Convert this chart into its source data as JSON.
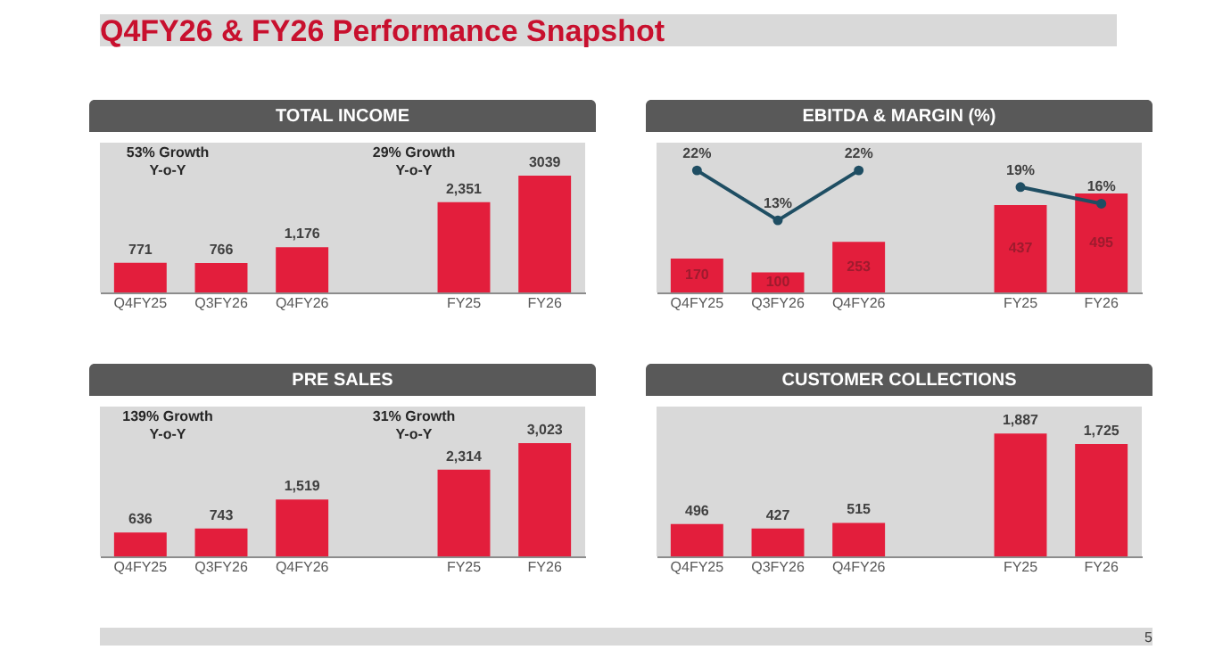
{
  "chart_data": [
    {
      "type": "other",
      "title": "Q4FY26 & FY26 Performance Snapshot",
      "annotations": [
        "5"
      ]
    },
    {
      "type": "bar",
      "title": "TOTAL INCOME",
      "categories": [
        "Q4FY25",
        "Q3FY26",
        "Q4FY26",
        null,
        "FY25",
        "FY26"
      ],
      "values": [
        771,
        766,
        1176,
        null,
        2351,
        3039
      ],
      "value_labels": [
        "771",
        "766",
        "1,176",
        null,
        "2,351",
        "3039"
      ],
      "color": "#e31e3c",
      "ylim": [
        0,
        3900
      ],
      "tick_labels": "x",
      "annotations": [
        "53% Growth\nY-o-Y",
        "29% Growth\nY-o-Y"
      ]
    },
    {
      "type": "bar",
      "title": "EBITDA & MARGIN (%)",
      "categories": [
        "Q4FY25",
        "Q3FY26",
        "Q4FY26",
        null,
        "FY25",
        "FY26"
      ],
      "ylim": [
        0,
        750
      ],
      "y2lim": [
        0,
        27
      ],
      "tick_labels": "x",
      "series": [
        {
          "type": "bar",
          "color": "#e31e3c",
          "values": [
            170,
            100,
            253,
            null,
            437,
            495
          ],
          "value_labels": [
            "170",
            "100",
            "253",
            null,
            "437",
            "495"
          ]
        },
        {
          "type": "line",
          "axis": "y2",
          "color": "#1f4e63",
          "marker": "circle",
          "values": [
            22,
            13,
            22,
            null,
            19,
            16
          ],
          "value_labels": [
            "22%",
            "13%",
            "22%",
            null,
            "19%",
            "16%"
          ]
        }
      ]
    },
    {
      "type": "bar",
      "title": "PRE SALES",
      "categories": [
        "Q4FY25",
        "Q3FY26",
        "Q4FY26",
        null,
        "FY25",
        "FY26"
      ],
      "values": [
        636,
        743,
        1519,
        null,
        2314,
        3023
      ],
      "value_labels": [
        "636",
        "743",
        "1,519",
        null,
        "2,314",
        "3,023"
      ],
      "color": "#e31e3c",
      "ylim": [
        0,
        4000
      ],
      "tick_labels": "x",
      "annotations": [
        "139% Growth\nY-o-Y",
        "31% Growth\nY-o-Y"
      ]
    },
    {
      "type": "bar",
      "title": "CUSTOMER COLLECTIONS",
      "categories": [
        "Q4FY25",
        "Q3FY26",
        "Q4FY26",
        null,
        "FY25",
        "FY26"
      ],
      "values": [
        496,
        427,
        515,
        null,
        1887,
        1725
      ],
      "value_labels": [
        "496",
        "427",
        "515",
        null,
        "1,887",
        "1,725"
      ],
      "color": "#e31e3c",
      "ylim": [
        0,
        2300
      ],
      "tick_labels": "x"
    }
  ]
}
